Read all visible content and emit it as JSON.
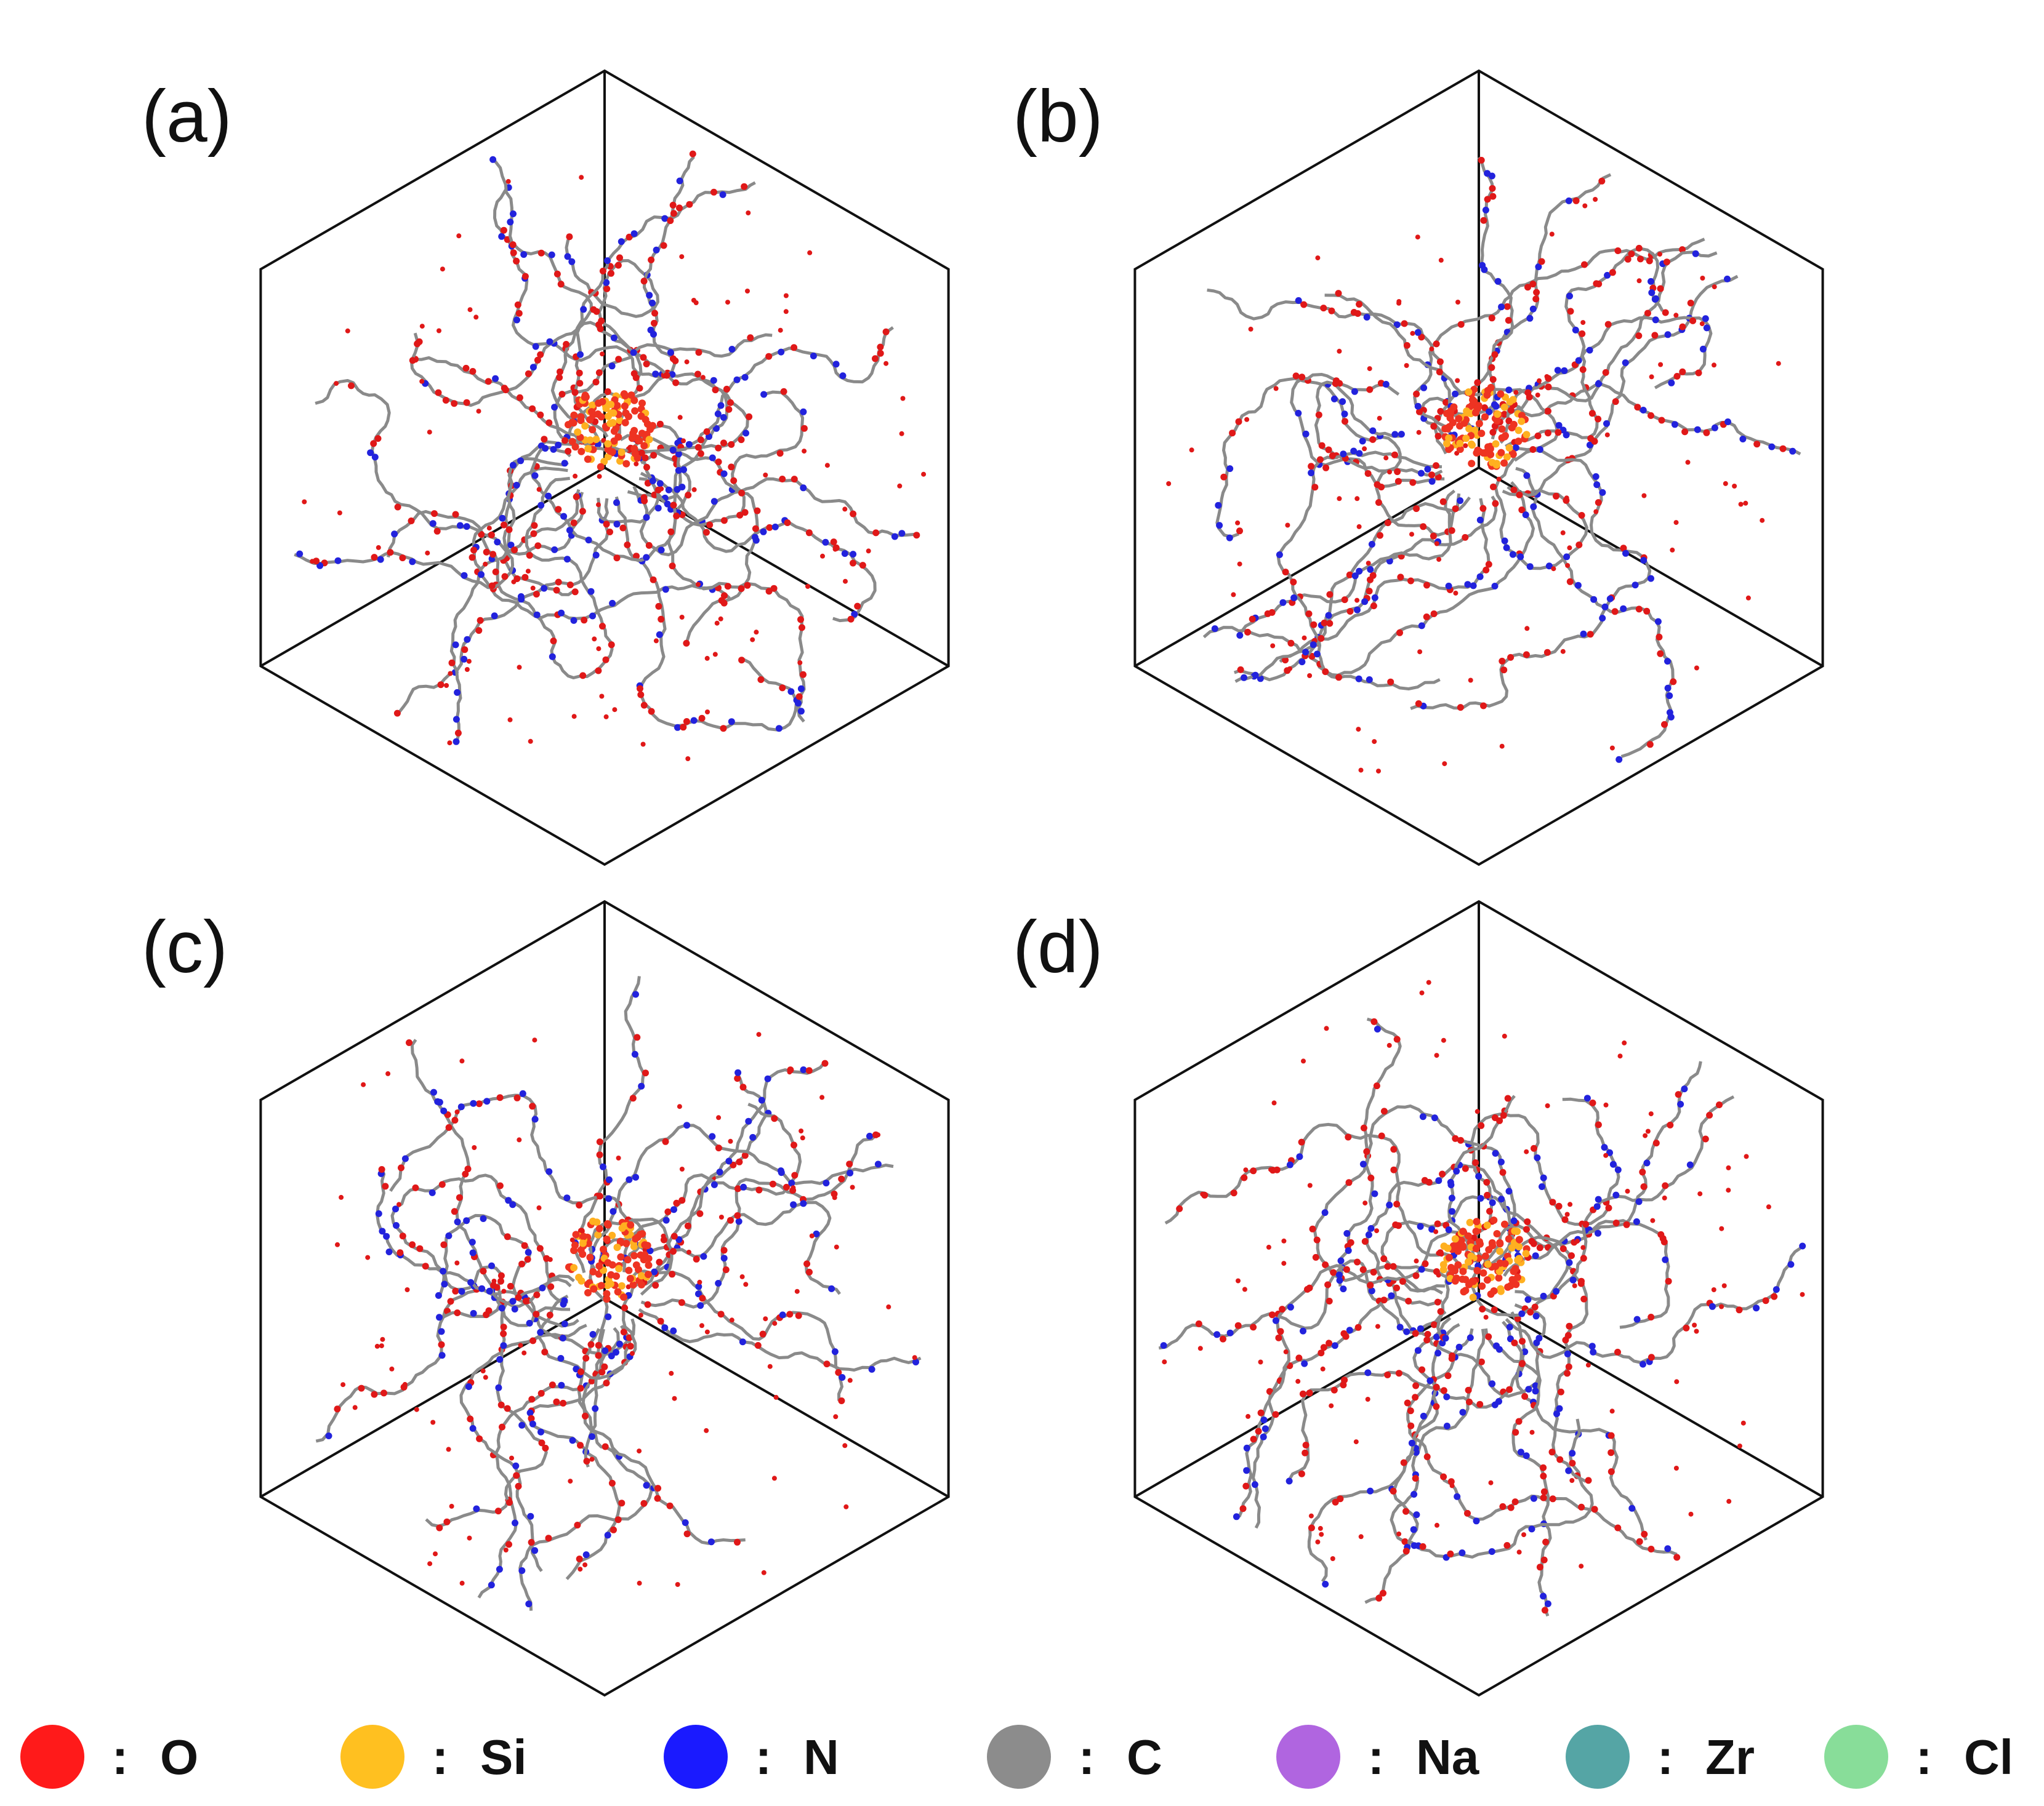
{
  "figure": {
    "panels": [
      {
        "label": "(a)",
        "variant": 0
      },
      {
        "label": "(b)",
        "variant": 1
      },
      {
        "label": "(c)",
        "variant": 2
      },
      {
        "label": "(d)",
        "variant": 3
      }
    ],
    "legend": [
      {
        "element": "O",
        "color": "#ff1a1a"
      },
      {
        "element": "Si",
        "color": "#ffc020"
      },
      {
        "element": "N",
        "color": "#1a1aff"
      },
      {
        "element": "C",
        "color": "#8c8c8c"
      },
      {
        "element": "Na",
        "color": "#b065e0"
      },
      {
        "element": "Zr",
        "color": "#55a5a5"
      },
      {
        "element": "Cl",
        "color": "#88dd99"
      }
    ],
    "legend_separator": ":",
    "atom_colors": {
      "oxygen": "#e01818",
      "nitrogen": "#2222dd",
      "carbon": "#8a8a8a",
      "silicon": "#ffb020",
      "core_oxygen": "#ee3322"
    }
  }
}
